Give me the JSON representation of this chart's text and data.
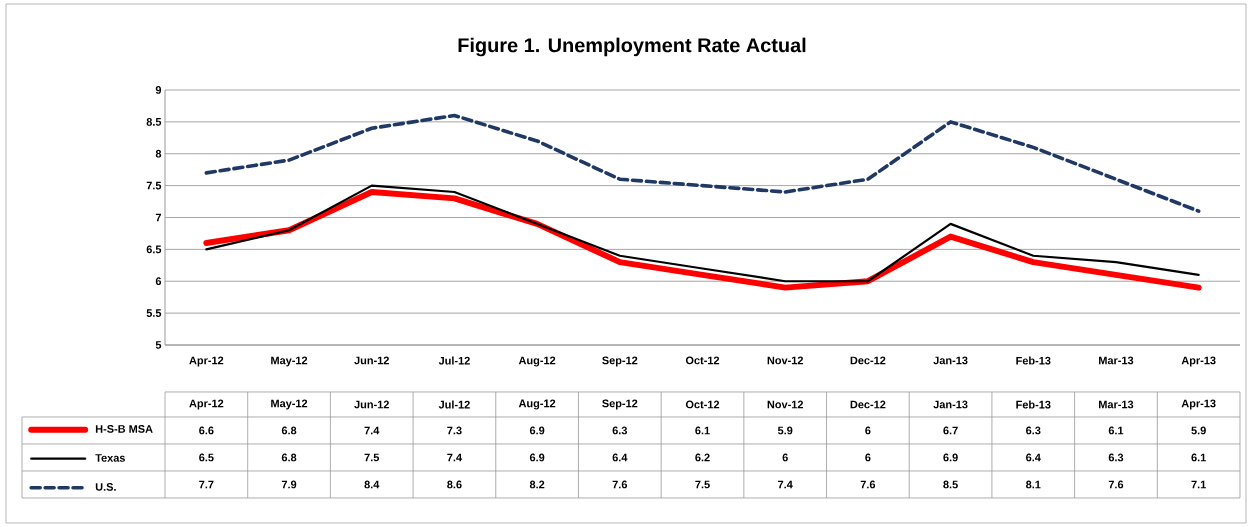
{
  "chart_data": {
    "type": "line",
    "title": "Figure 1. Unemployment Rate Actual",
    "categories": [
      "Apr-12",
      "May-12",
      "Jun-12",
      "Jul-12",
      "Aug-12",
      "Sep-12",
      "Oct-12",
      "Nov-12",
      "Dec-12",
      "Jan-13",
      "Feb-13",
      "Mar-13",
      "Apr-13"
    ],
    "series": [
      {
        "name": "H-S-B MSA",
        "color": "#ff0000",
        "line_style": "solid",
        "values": [
          6.6,
          6.8,
          7.4,
          7.3,
          6.9,
          6.3,
          6.1,
          5.9,
          6,
          6.7,
          6.3,
          6.1,
          5.9
        ]
      },
      {
        "name": "Texas",
        "color": "#000000",
        "line_style": "solid",
        "values": [
          6.5,
          6.8,
          7.5,
          7.4,
          6.9,
          6.4,
          6.2,
          6,
          6,
          6.9,
          6.4,
          6.3,
          6.1
        ]
      },
      {
        "name": "U.S.",
        "color": "#1f3864",
        "line_style": "dashed",
        "values": [
          7.7,
          7.9,
          8.4,
          8.6,
          8.2,
          7.6,
          7.5,
          7.4,
          7.6,
          8.5,
          8.1,
          7.6,
          7.1
        ]
      }
    ],
    "ylim": [
      5,
      9
    ],
    "yticks": [
      5,
      5.5,
      6,
      6.5,
      7,
      7.5,
      8,
      8.5,
      9
    ],
    "grid": "y",
    "legend": "bottom left",
    "data_labels": true,
    "marker": "none"
  }
}
